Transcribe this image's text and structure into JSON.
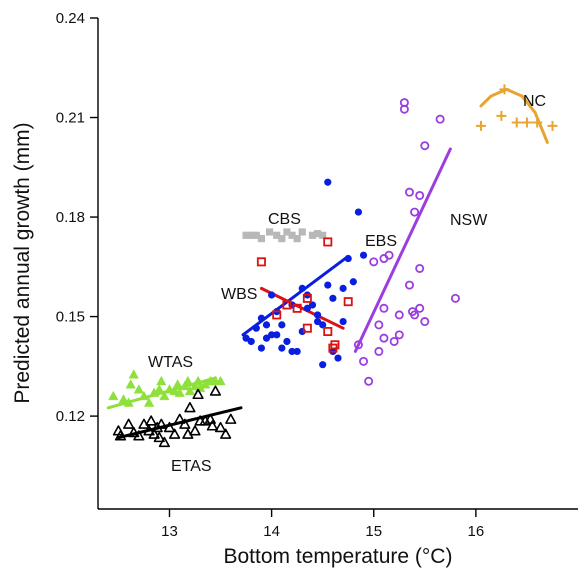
{
  "chart_data": {
    "type": "scatter",
    "xlabel": "Bottom temperature (°C)",
    "ylabel": "Predicted annual growth (mm)",
    "xlim": [
      12.3,
      17.0
    ],
    "ylim": [
      0.092,
      0.24
    ],
    "xticks": [
      13,
      14,
      15,
      16
    ],
    "yticks": [
      0.12,
      0.15,
      0.18,
      0.21,
      0.24
    ],
    "xtick_labels": [
      "13",
      "14",
      "15",
      "16"
    ],
    "ytick_labels": [
      "0.12",
      "0.15",
      "0.18",
      "0.21",
      "0.24"
    ],
    "grid": false,
    "series": [
      {
        "name": "WTAS",
        "marker": "triangle-filled",
        "color": "#8ee03a",
        "points": [
          [
            12.45,
            0.126
          ],
          [
            12.55,
            0.125
          ],
          [
            12.6,
            0.124
          ],
          [
            12.62,
            0.1295
          ],
          [
            12.65,
            0.1325
          ],
          [
            12.7,
            0.128
          ],
          [
            12.75,
            0.126
          ],
          [
            12.8,
            0.124
          ],
          [
            12.85,
            0.127
          ],
          [
            12.9,
            0.128
          ],
          [
            12.92,
            0.1305
          ],
          [
            12.95,
            0.126
          ],
          [
            13.0,
            0.128
          ],
          [
            13.05,
            0.1275
          ],
          [
            13.08,
            0.1295
          ],
          [
            13.1,
            0.127
          ],
          [
            13.15,
            0.129
          ],
          [
            13.18,
            0.1305
          ],
          [
            13.2,
            0.1275
          ],
          [
            13.25,
            0.129
          ],
          [
            13.28,
            0.1305
          ],
          [
            13.3,
            0.1285
          ],
          [
            13.35,
            0.1295
          ],
          [
            13.4,
            0.1305
          ],
          [
            13.45,
            0.1305
          ],
          [
            13.5,
            0.1305
          ]
        ],
        "trend": [
          [
            12.4,
            0.1225
          ],
          [
            13.45,
            0.1315
          ]
        ]
      },
      {
        "name": "ETAS",
        "marker": "triangle-open",
        "color": "#000000",
        "points": [
          [
            12.5,
            0.1155
          ],
          [
            12.52,
            0.114
          ],
          [
            12.6,
            0.1175
          ],
          [
            12.65,
            0.115
          ],
          [
            12.7,
            0.114
          ],
          [
            12.75,
            0.1175
          ],
          [
            12.8,
            0.1155
          ],
          [
            12.82,
            0.1185
          ],
          [
            12.85,
            0.1145
          ],
          [
            12.88,
            0.1165
          ],
          [
            12.9,
            0.1135
          ],
          [
            12.92,
            0.1175
          ],
          [
            12.95,
            0.112
          ],
          [
            13.0,
            0.1165
          ],
          [
            13.05,
            0.1145
          ],
          [
            13.1,
            0.119
          ],
          [
            13.15,
            0.1175
          ],
          [
            13.18,
            0.1145
          ],
          [
            13.2,
            0.1225
          ],
          [
            13.25,
            0.1155
          ],
          [
            13.28,
            0.1265
          ],
          [
            13.3,
            0.1185
          ],
          [
            13.35,
            0.1185
          ],
          [
            13.4,
            0.119
          ],
          [
            13.42,
            0.117
          ],
          [
            13.45,
            0.1275
          ],
          [
            13.5,
            0.1165
          ],
          [
            13.55,
            0.1145
          ],
          [
            13.6,
            0.119
          ]
        ],
        "trend": [
          [
            12.5,
            0.1135
          ],
          [
            13.7,
            0.1225
          ]
        ]
      },
      {
        "name": "CBS",
        "marker": "square-filled",
        "color": "#b8b8b8",
        "points": [
          [
            13.75,
            0.1745
          ],
          [
            13.8,
            0.1745
          ],
          [
            13.85,
            0.1745
          ],
          [
            13.9,
            0.1735
          ],
          [
            13.98,
            0.1755
          ],
          [
            14.05,
            0.1745
          ],
          [
            14.1,
            0.1735
          ],
          [
            14.15,
            0.1755
          ],
          [
            14.2,
            0.1745
          ],
          [
            14.25,
            0.1735
          ],
          [
            14.3,
            0.1755
          ],
          [
            14.4,
            0.1745
          ],
          [
            14.45,
            0.175
          ],
          [
            14.5,
            0.1745
          ]
        ]
      },
      {
        "name": "EBS",
        "marker": "circle-filled",
        "color": "#0a1ee0",
        "points": [
          [
            13.75,
            0.1435
          ],
          [
            13.8,
            0.1425
          ],
          [
            13.85,
            0.1465
          ],
          [
            13.9,
            0.1495
          ],
          [
            13.9,
            0.1405
          ],
          [
            13.95,
            0.1475
          ],
          [
            13.95,
            0.1435
          ],
          [
            14.0,
            0.1565
          ],
          [
            14.0,
            0.1445
          ],
          [
            14.05,
            0.1515
          ],
          [
            14.05,
            0.1445
          ],
          [
            14.1,
            0.1405
          ],
          [
            14.1,
            0.1475
          ],
          [
            14.15,
            0.1425
          ],
          [
            14.2,
            0.1395
          ],
          [
            14.2,
            0.1535
          ],
          [
            14.25,
            0.1395
          ],
          [
            14.3,
            0.1585
          ],
          [
            14.3,
            0.1455
          ],
          [
            14.35,
            0.1525
          ],
          [
            14.35,
            0.1565
          ],
          [
            14.4,
            0.1535
          ],
          [
            14.45,
            0.1485
          ],
          [
            14.45,
            0.1505
          ],
          [
            14.5,
            0.1355
          ],
          [
            14.5,
            0.1475
          ],
          [
            14.55,
            0.1905
          ],
          [
            14.55,
            0.1595
          ],
          [
            14.6,
            0.1555
          ],
          [
            14.6,
            0.1395
          ],
          [
            14.65,
            0.1375
          ],
          [
            14.7,
            0.1485
          ],
          [
            14.7,
            0.1585
          ],
          [
            14.75,
            0.1675
          ],
          [
            14.8,
            0.1605
          ],
          [
            14.85,
            0.1815
          ],
          [
            14.9,
            0.1685
          ]
        ],
        "trend": [
          [
            13.72,
            0.1445
          ],
          [
            14.72,
            0.1675
          ]
        ]
      },
      {
        "name": "WBS",
        "marker": "square-open",
        "color": "#dd1111",
        "points": [
          [
            13.9,
            0.1665
          ],
          [
            14.05,
            0.1505
          ],
          [
            14.15,
            0.1535
          ],
          [
            14.25,
            0.1525
          ],
          [
            14.35,
            0.1555
          ],
          [
            14.35,
            0.1465
          ],
          [
            14.55,
            0.1725
          ],
          [
            14.55,
            0.1455
          ],
          [
            14.6,
            0.1405
          ],
          [
            14.62,
            0.1415
          ],
          [
            14.75,
            0.1545
          ]
        ],
        "trend": [
          [
            13.9,
            0.1585
          ],
          [
            14.7,
            0.1465
          ]
        ]
      },
      {
        "name": "NSW",
        "marker": "circle-open",
        "color": "#9b3de0",
        "points": [
          [
            14.85,
            0.1415
          ],
          [
            14.9,
            0.1365
          ],
          [
            14.95,
            0.1305
          ],
          [
            15.0,
            0.1665
          ],
          [
            15.05,
            0.1475
          ],
          [
            15.05,
            0.1395
          ],
          [
            15.1,
            0.1675
          ],
          [
            15.1,
            0.1525
          ],
          [
            15.1,
            0.1435
          ],
          [
            15.15,
            0.1685
          ],
          [
            15.2,
            0.1425
          ],
          [
            15.25,
            0.1505
          ],
          [
            15.25,
            0.1445
          ],
          [
            15.3,
            0.2125
          ],
          [
            15.3,
            0.2145
          ],
          [
            15.35,
            0.1875
          ],
          [
            15.35,
            0.1595
          ],
          [
            15.38,
            0.1515
          ],
          [
            15.4,
            0.1815
          ],
          [
            15.4,
            0.1505
          ],
          [
            15.45,
            0.1865
          ],
          [
            15.45,
            0.1645
          ],
          [
            15.45,
            0.1525
          ],
          [
            15.5,
            0.1485
          ],
          [
            15.5,
            0.2015
          ],
          [
            15.65,
            0.2095
          ],
          [
            15.8,
            0.1555
          ]
        ],
        "trend": [
          [
            14.82,
            0.1395
          ],
          [
            15.75,
            0.2005
          ]
        ]
      },
      {
        "name": "NC",
        "marker": "plus",
        "color": "#e8a430",
        "points": [
          [
            16.05,
            0.2075
          ],
          [
            16.25,
            0.2105
          ],
          [
            16.28,
            0.2185
          ],
          [
            16.4,
            0.2085
          ],
          [
            16.5,
            0.2085
          ],
          [
            16.6,
            0.2085
          ],
          [
            16.75,
            0.2075
          ]
        ],
        "trend": [
          [
            16.05,
            0.2135
          ],
          [
            16.15,
            0.2165
          ],
          [
            16.3,
            0.2185
          ],
          [
            16.45,
            0.2165
          ],
          [
            16.58,
            0.2115
          ],
          [
            16.7,
            0.2025
          ]
        ]
      }
    ]
  }
}
